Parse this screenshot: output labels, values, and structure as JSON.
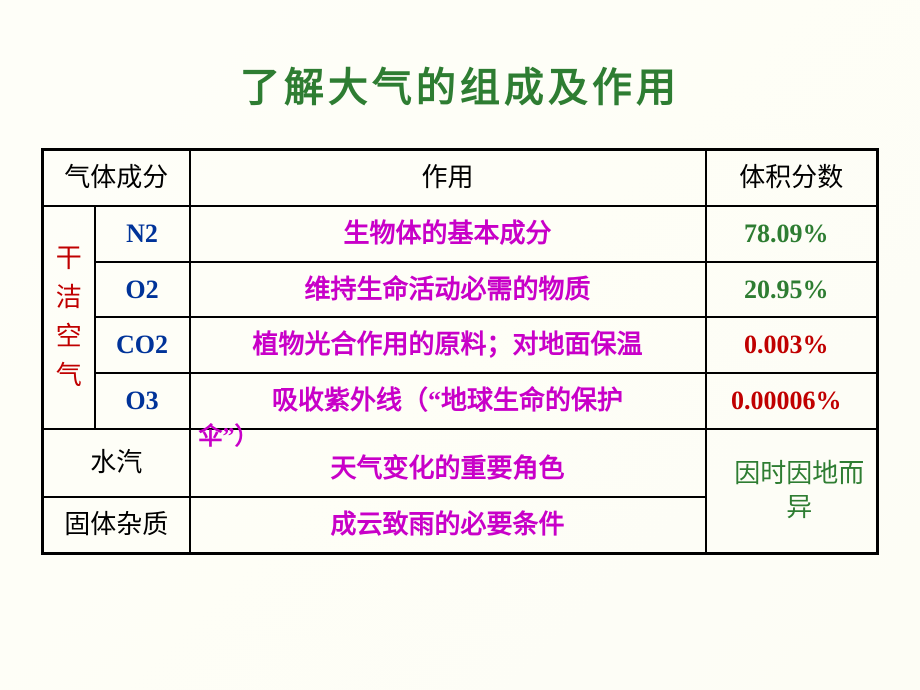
{
  "title": "了解大气的组成及作用",
  "title_color": "#2e7d32",
  "title_fontsize": 40,
  "colors": {
    "formula": "#003399",
    "desc": "#c800c8",
    "val_green": "#2e7d32",
    "val_red": "#c00000",
    "vert": "#c00000",
    "header": "#000000",
    "var_text": "#2e7d32"
  },
  "headers": {
    "col1": "气体成分",
    "col2": "作用",
    "col3": "体积分数"
  },
  "vert_label": "干洁空气",
  "rows": [
    {
      "formula": "N2",
      "desc": "生物体的基本成分",
      "val": "78.09%",
      "val_color": "#2e7d32"
    },
    {
      "formula": "O2",
      "desc": "维持生命活动必需的物质",
      "val": "20.95%",
      "val_color": "#2e7d32"
    },
    {
      "formula": "CO2",
      "desc": "植物光合作用的原料；对地面保温",
      "val": "0.003%",
      "val_color": "#c00000"
    },
    {
      "formula": "O3",
      "desc": "吸收紫外线（“地球生命的保护",
      "desc_overflow": "伞”）",
      "val": "0.00006%",
      "val_color": "#c00000"
    }
  ],
  "bottom": {
    "row1_label": "水汽",
    "row1_desc": "天气变化的重要角色",
    "row2_label": "固体杂质",
    "row2_desc": "成云致雨的必要条件",
    "var_text": "因时因地而异"
  }
}
